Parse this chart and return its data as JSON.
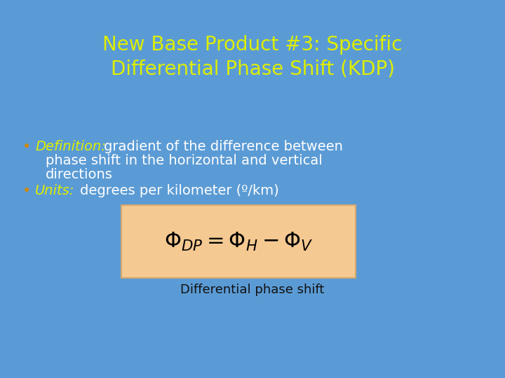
{
  "background_color": "#5b9bd5",
  "title_line1": "New Base Product #3: Specific",
  "title_line2": "Differential Phase Shift (KDP)",
  "title_color": "#ddee00",
  "title_fontsize": 20,
  "bullet_label_color": "#ddee00",
  "bullet_text_color": "#ffffff",
  "bullet_fontsize": 14,
  "bullet_dot_color": "#cc8800",
  "formula_box_color": "#f5c992",
  "formula_box_edge": "#d4a870",
  "formula_text": "$\\Phi_{DP} = \\Phi_{H} - \\Phi_{V}$",
  "formula_caption": "Differential phase shift",
  "formula_caption_color": "#111111",
  "formula_fontsize": 22,
  "formula_caption_fontsize": 13
}
